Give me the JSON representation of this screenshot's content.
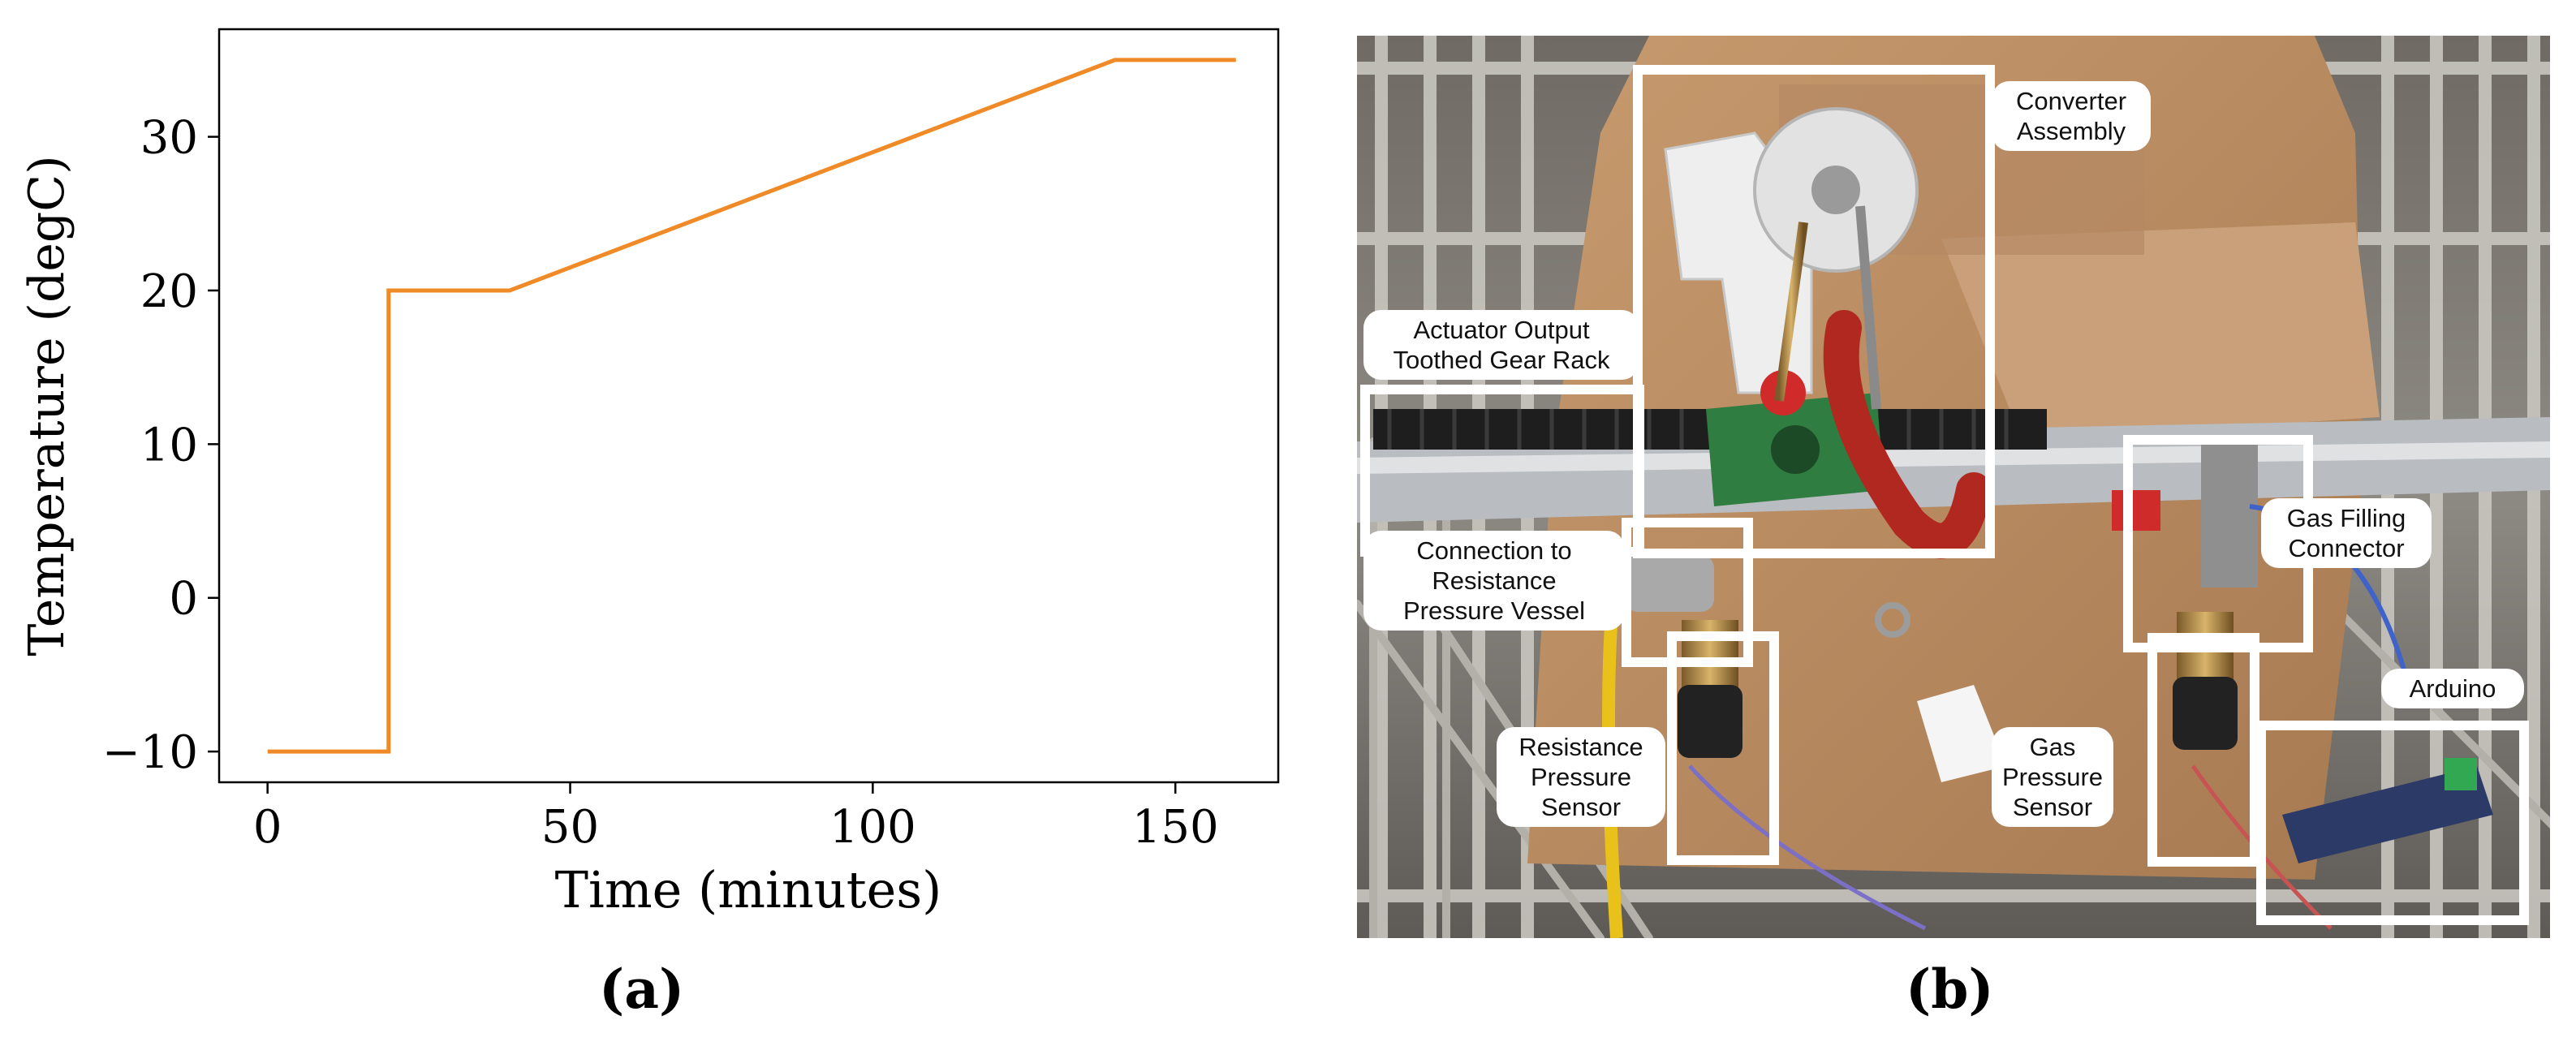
{
  "figure": {
    "label_a": "(a)",
    "label_b": "(b)"
  },
  "chart_data": {
    "type": "line",
    "xlabel": "Time (minutes)",
    "ylabel": "Temperature (degC)",
    "xlim": [
      -8,
      167
    ],
    "ylim": [
      -12,
      37
    ],
    "xticks": [
      0,
      50,
      100,
      150
    ],
    "yticks": [
      -10,
      0,
      10,
      20,
      30
    ],
    "grid": false,
    "color": "#ef8a26",
    "series": [
      {
        "x": [
          0,
          20,
          20,
          40,
          140,
          160
        ],
        "y": [
          -10,
          -10,
          20,
          20,
          35,
          35
        ]
      }
    ]
  },
  "photo": {
    "callouts": {
      "converter": [
        "Converter",
        "Assembly"
      ],
      "actuator": [
        "Actuator Output",
        "Toothed Gear Rack"
      ],
      "connection": [
        "Connection to",
        "Resistance",
        "Pressure Vessel"
      ],
      "resistance_sensor": [
        "Resistance",
        "Pressure",
        "Sensor"
      ],
      "gas_sensor": [
        "Gas",
        "Pressure",
        "Sensor"
      ],
      "gas_filling": [
        "Gas Filling",
        "Connector"
      ],
      "arduino": [
        "Arduino"
      ]
    }
  }
}
